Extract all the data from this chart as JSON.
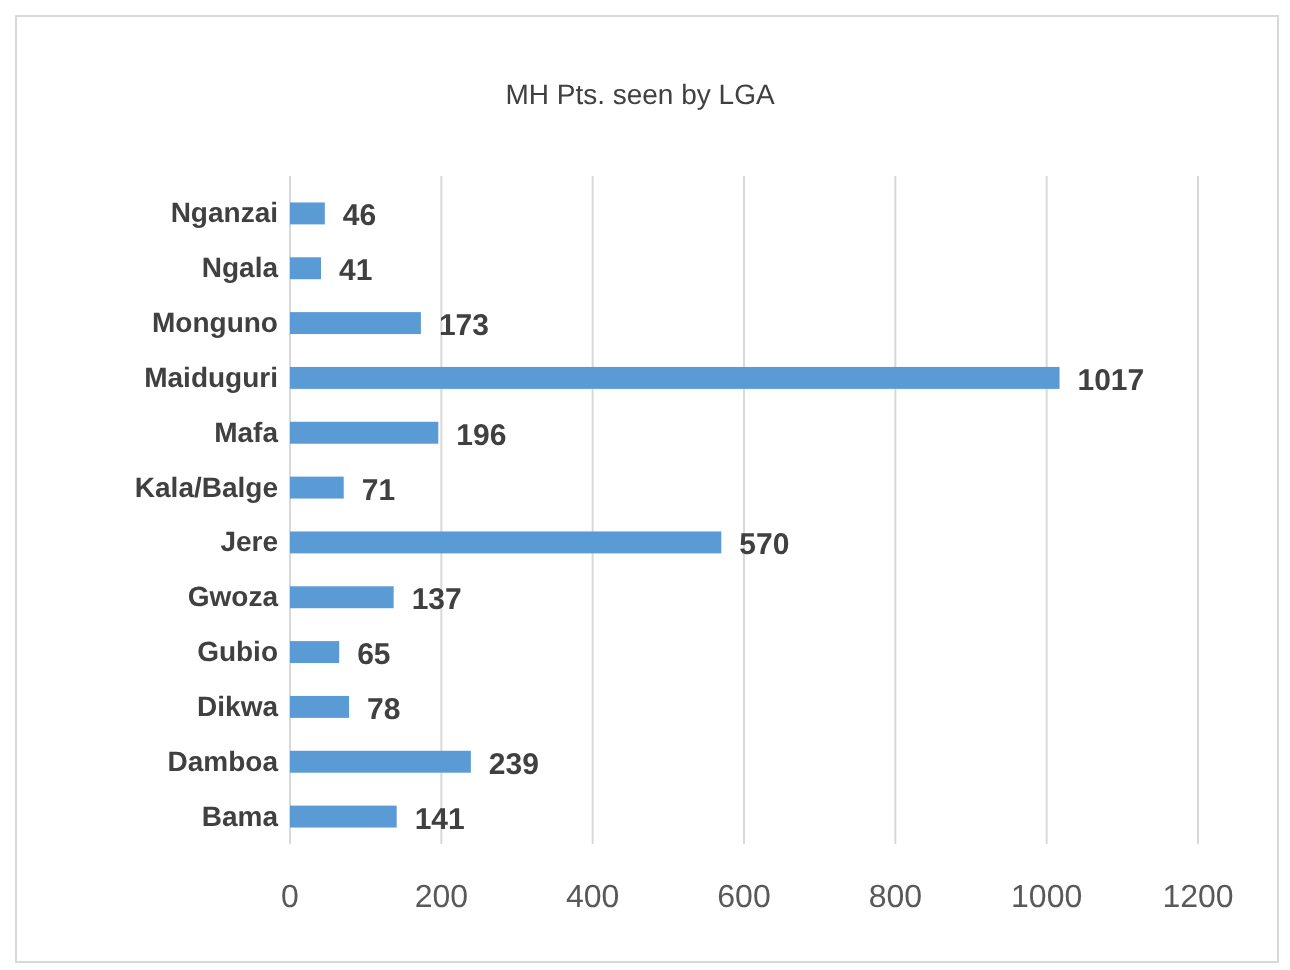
{
  "chart_data": {
    "type": "bar",
    "title": "MH Pts. seen by LGA",
    "orientation": "horizontal",
    "categories": [
      "Nganzai",
      "Ngala",
      "Monguno",
      "Maiduguri",
      "Mafa",
      "Kala/Balge",
      "Jere",
      "Gwoza",
      "Gubio",
      "Dikwa",
      "Damboa",
      "Bama"
    ],
    "values": [
      46,
      41,
      173,
      1017,
      196,
      71,
      570,
      137,
      65,
      78,
      239,
      141
    ],
    "color": "#5b9bd5",
    "xlim": [
      0,
      1200
    ],
    "xticks": [
      0,
      200,
      400,
      600,
      800,
      1000,
      1200
    ],
    "grid": "x",
    "data_labels": true
  }
}
